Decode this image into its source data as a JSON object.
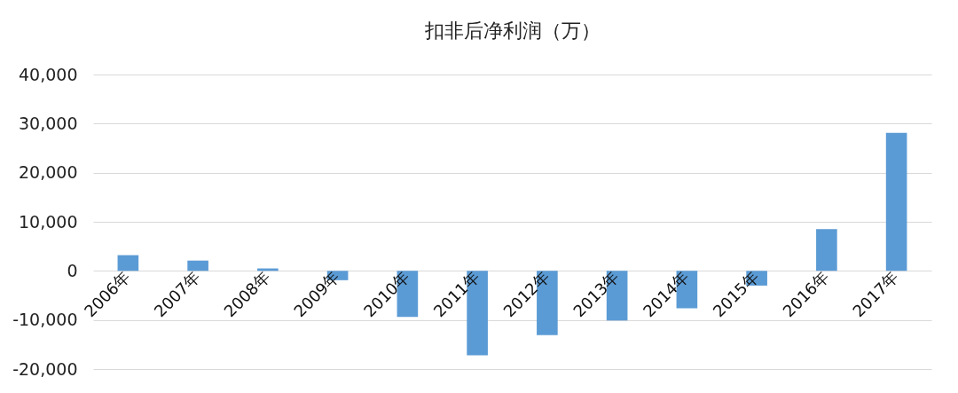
{
  "chart_data": {
    "type": "bar",
    "title": "扣非后净利润（万）",
    "categories": [
      "2006年",
      "2007年",
      "2008年",
      "2009年",
      "2010年",
      "2011年",
      "2012年",
      "2013年",
      "2014年",
      "2015年",
      "2016年",
      "2017年"
    ],
    "values": [
      3200,
      2100,
      500,
      -1900,
      -9400,
      -17200,
      -13100,
      -10100,
      -7600,
      -3000,
      8500,
      28100
    ],
    "color": "#5b9bd5",
    "ylim": [
      -20000,
      40000
    ],
    "yticks": [
      {
        "value": -20000,
        "label": "-20,000"
      },
      {
        "value": -10000,
        "label": "-10,000"
      },
      0,
      {
        "value": 10000,
        "label": "10,000"
      },
      {
        "value": 20000,
        "label": "20,000"
      },
      {
        "value": 30000,
        "label": "30,000"
      },
      {
        "value": 40000,
        "label": "40,000"
      }
    ],
    "grid": "y"
  }
}
